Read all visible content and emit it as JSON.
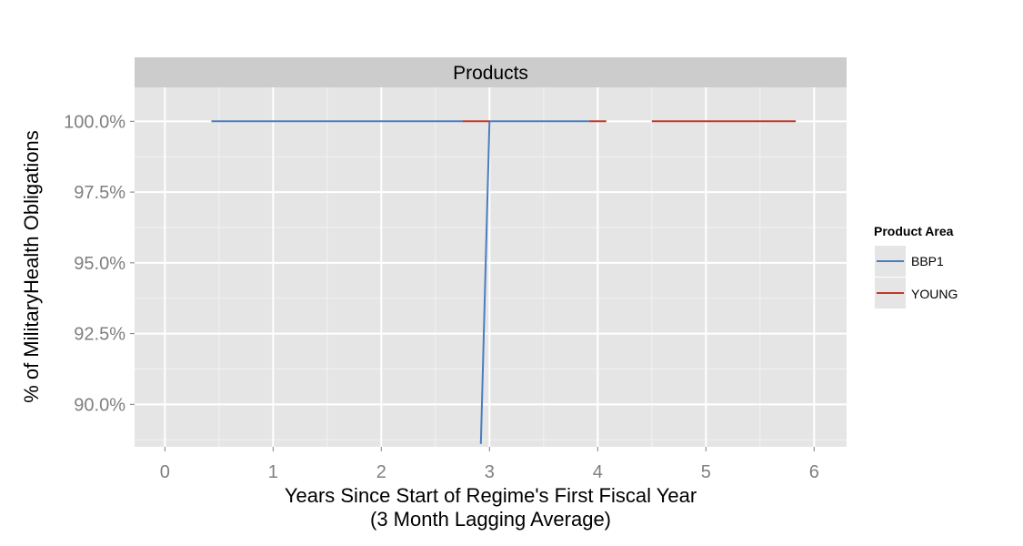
{
  "chart_data": {
    "type": "line",
    "facet_title": "Products",
    "xlabel": "Years Since Start of Regime's First Fiscal Year",
    "xlabel_sub": "(3 Month Lagging Average)",
    "ylabel": "% of MilitaryHealth Obligations",
    "xlim": [
      -0.28,
      6.3
    ],
    "ylim": [
      88.5,
      101.2
    ],
    "x_ticks": [
      0,
      1,
      2,
      3,
      4,
      5,
      6
    ],
    "x_tick_labels": [
      "0",
      "1",
      "2",
      "3",
      "4",
      "5",
      "6"
    ],
    "y_ticks": [
      90,
      92.5,
      95,
      97.5,
      100
    ],
    "y_tick_labels": [
      "90.0%",
      "92.5%",
      "95.0%",
      "97.5%",
      "100.0%"
    ],
    "grid": true,
    "legend": {
      "title": "Product Area",
      "placement": "right",
      "entries": [
        {
          "label": "BBP1",
          "color": "#4a7dbf"
        },
        {
          "label": "YOUNG",
          "color": "#c0392b"
        }
      ]
    },
    "series": [
      {
        "name": "BBP1",
        "color": "#4a7dbf",
        "segments": [
          [
            [
              0.43,
              100
            ],
            [
              2.75,
              100
            ]
          ],
          [
            [
              2.92,
              88.6
            ],
            [
              3.0,
              100
            ],
            [
              3.92,
              100
            ]
          ]
        ]
      },
      {
        "name": "YOUNG",
        "color": "#c0392b",
        "segments": [
          [
            [
              2.75,
              100
            ],
            [
              3.0,
              100
            ]
          ],
          [
            [
              3.92,
              100
            ],
            [
              4.08,
              100
            ]
          ],
          [
            [
              4.5,
              100
            ],
            [
              5.83,
              100
            ]
          ]
        ]
      }
    ]
  }
}
